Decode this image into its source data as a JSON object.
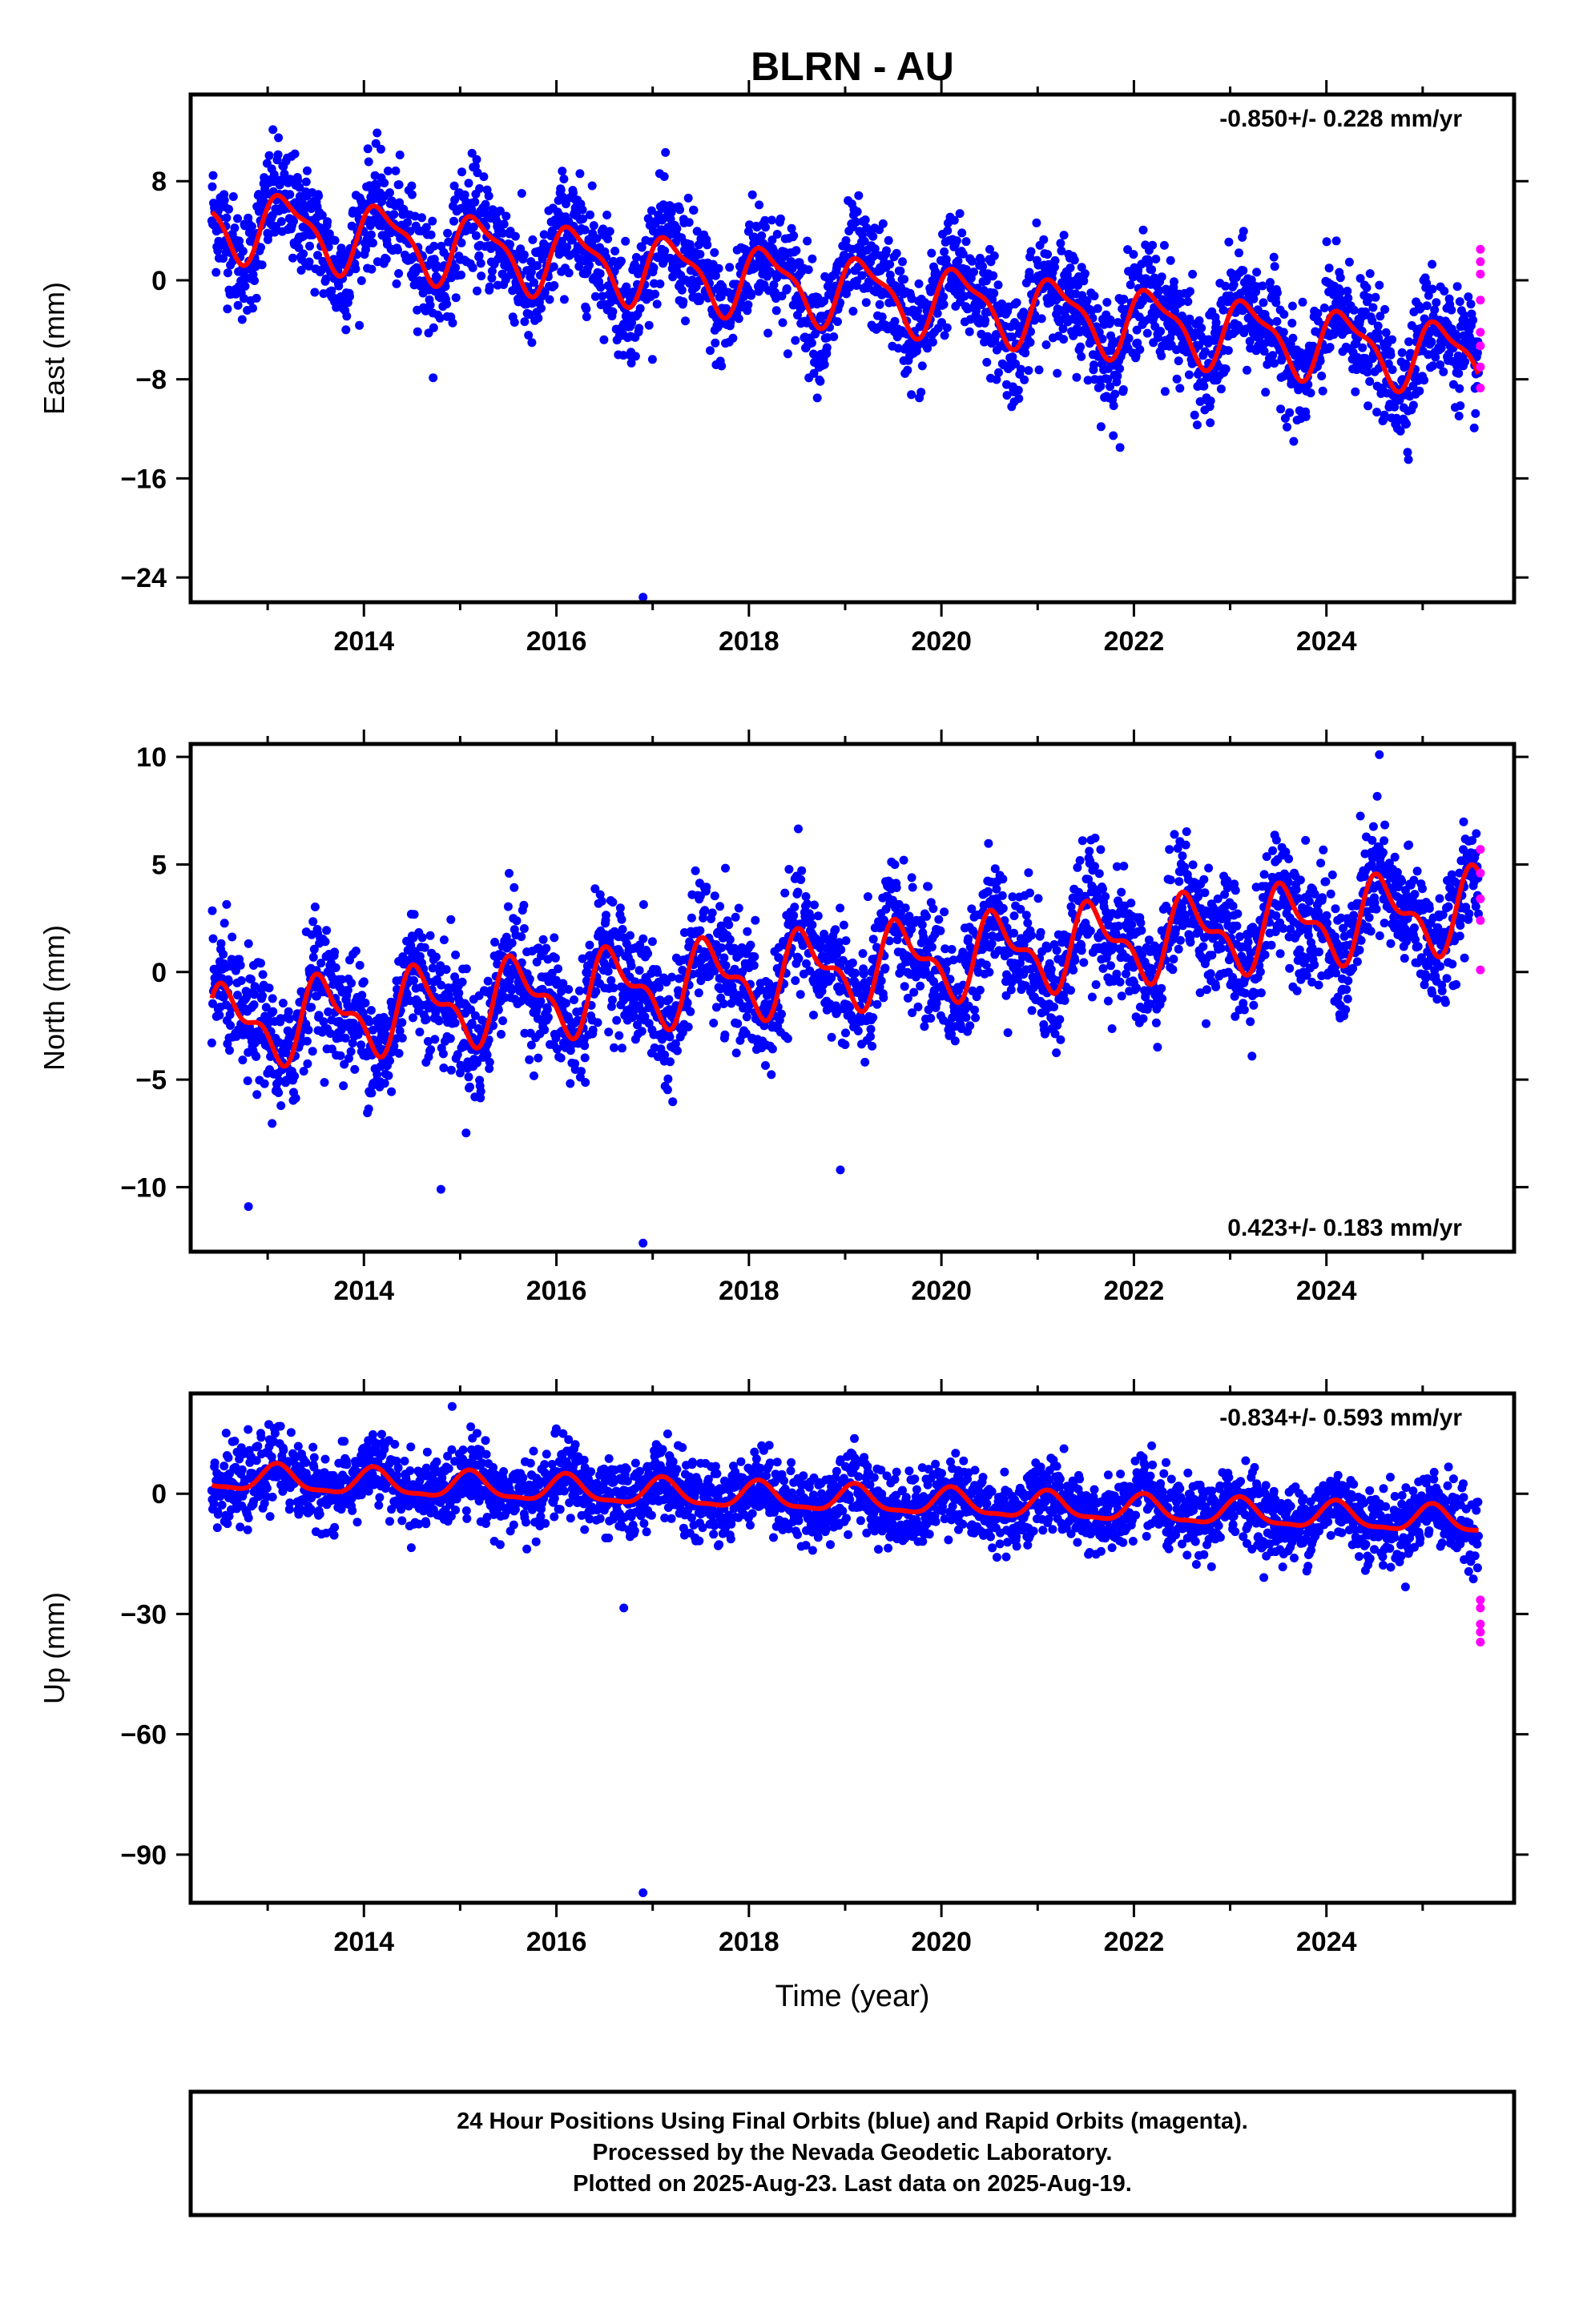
{
  "title": "BLRN - AU",
  "colors": {
    "final": "#0000ff",
    "rapid": "#ff00ff",
    "fit": "#ff0000"
  },
  "x_axis": {
    "label": "Time (year)",
    "ticks": [
      "2014",
      "2016",
      "2018",
      "2020",
      "2022",
      "2024"
    ]
  },
  "caption": [
    "24 Hour Positions Using Final Orbits (blue) and Rapid Orbits (magenta).",
    "Processed by the Nevada Geodetic Laboratory.",
    "Plotted on 2025-Aug-23. Last data on 2025-Aug-19."
  ],
  "chart_data": [
    {
      "type": "scatter",
      "ylabel": "East (mm)",
      "rate": "-0.850+/- 0.228 mm/yr",
      "rate_position": "top-right",
      "xlim": [
        2012.2,
        2025.95
      ],
      "ylim": [
        -26,
        15
      ],
      "yticks": [
        8,
        0,
        -8,
        -16,
        -24
      ],
      "ytick_labels": [
        "8",
        "0",
        "−8",
        "−16",
        "−24"
      ],
      "fit": {
        "trend_start": 4.8,
        "trend_start_year": 2012.4,
        "rate_mm_per_yr": -0.85,
        "annual_amplitude": 2.6,
        "annual_phase": 0.3,
        "semiannual_amplitude": 0.9,
        "semiannual_phase": 1.2
      },
      "scatter_sd": 2.2,
      "outliers": [
        {
          "x": 2016.9,
          "y": -25.6
        }
      ],
      "rapid": {
        "x": 2025.6,
        "values": [
          2.5,
          1.5,
          0.5,
          -1.6,
          -4.2,
          -5.3,
          -7.0,
          -8.7
        ]
      }
    },
    {
      "type": "scatter",
      "ylabel": "North (mm)",
      "rate": "0.423+/- 0.183 mm/yr",
      "rate_position": "bottom-right",
      "xlim": [
        2012.2,
        2025.95
      ],
      "ylim": [
        -13,
        10.6
      ],
      "yticks": [
        10,
        5,
        0,
        -5,
        -10
      ],
      "ytick_labels": [
        "10",
        "5",
        "0",
        "−5",
        "−10"
      ],
      "fit": {
        "trend_start": -2.6,
        "trend_start_year": 2012.4,
        "rate_mm_per_yr": 0.423,
        "annual_amplitude": 1.6,
        "annual_phase": 4.1,
        "semiannual_amplitude": 0.8,
        "semiannual_phase": 2.0
      },
      "scatter_sd": 1.4,
      "outliers": [
        {
          "x": 2016.9,
          "y": -12.6
        },
        {
          "x": 2012.8,
          "y": -10.9
        },
        {
          "x": 2014.8,
          "y": -10.1
        },
        {
          "x": 2018.95,
          "y": -9.2
        },
        {
          "x": 2024.55,
          "y": 10.1
        }
      ],
      "rapid": {
        "x": 2025.6,
        "values": [
          5.7,
          4.6,
          3.4,
          2.4,
          0.1
        ]
      }
    },
    {
      "type": "scatter",
      "ylabel": "Up (mm)",
      "rate": "-0.834+/- 0.593 mm/yr",
      "rate_position": "top-right",
      "xlim": [
        2012.2,
        2025.95
      ],
      "ylim": [
        -102,
        25
      ],
      "yticks": [
        0,
        -30,
        -60,
        -90
      ],
      "ytick_labels": [
        "0",
        "−30",
        "−60",
        "−90"
      ],
      "fit": {
        "trend_start": 4.0,
        "trend_start_year": 2012.4,
        "rate_mm_per_yr": -0.834,
        "annual_amplitude": 3.2,
        "annual_phase": 0.9,
        "semiannual_amplitude": 1.0,
        "semiannual_phase": 0.4
      },
      "scatter_sd": 4.5,
      "outliers": [
        {
          "x": 2016.9,
          "y": -99.5
        },
        {
          "x": 2016.7,
          "y": -28.5
        }
      ],
      "rapid": {
        "x": 2025.6,
        "values": [
          -26.5,
          -28.5,
          -32.5,
          -34.5,
          -37.0
        ]
      }
    }
  ]
}
